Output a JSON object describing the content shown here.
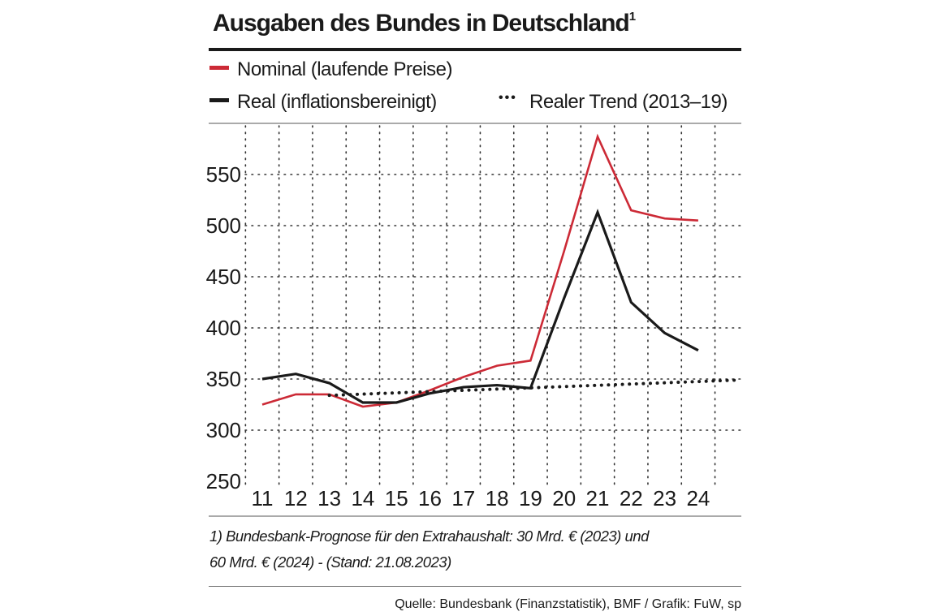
{
  "header": {
    "title": "Ausgaben des Bundes in Deutschland",
    "title_sup": "1"
  },
  "legend": {
    "nominal": "Nominal (laufende Preise)",
    "real": "Real (inflationsbereinigt)",
    "trend": "Realer Trend (2013–19)",
    "trend_symbol": "•••"
  },
  "colors": {
    "nominal": "#cc2a36",
    "real": "#1a1a1a",
    "trend": "#1a1a1a"
  },
  "chart_data": {
    "type": "line",
    "title": "Ausgaben des Bundes in Deutschland",
    "xlabel": "",
    "ylabel": "",
    "categories": [
      "11",
      "12",
      "13",
      "14",
      "15",
      "16",
      "17",
      "18",
      "19",
      "20",
      "21",
      "22",
      "23",
      "24"
    ],
    "yticks": [
      250,
      300,
      350,
      400,
      450,
      500,
      550
    ],
    "ylim": [
      245,
      597
    ],
    "grid": "dotted",
    "series": [
      {
        "name": "Nominal (laufende Preise)",
        "key": "nominal",
        "values": [
          325,
          335,
          335,
          323,
          327,
          339,
          352,
          363,
          368,
          475,
          587,
          515,
          507,
          505
        ]
      },
      {
        "name": "Real (inflationsbereinigt)",
        "key": "real",
        "values": [
          350,
          355,
          346,
          327,
          327,
          336,
          342,
          344,
          341,
          429,
          513,
          425,
          395,
          378
        ]
      },
      {
        "name": "Realer Trend (2013–19)",
        "key": "trend",
        "style": "dotted",
        "x": [
          13,
          25.2
        ],
        "values": [
          334,
          349
        ]
      }
    ]
  },
  "footnote": {
    "line1": "1) Bundesbank-Prognose für den Extrahaushalt: 30 Mrd. € (2023) und",
    "line2": "60 Mrd. €  (2024) - (Stand: 21.08.2023)"
  },
  "source": "Quelle: Bundesbank (Finanzstatistik), BMF / Grafik: FuW, sp"
}
